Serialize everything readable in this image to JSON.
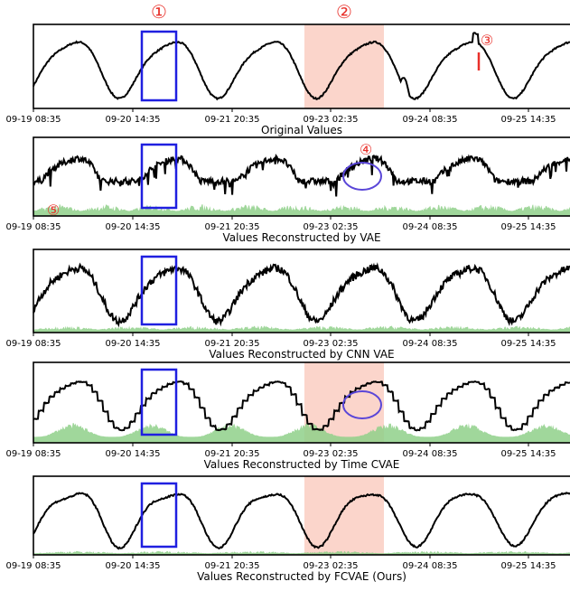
{
  "colors": {
    "signal": "#000000",
    "highlight_box": "#1f1fe0",
    "highlight_ellipse": "#5a46d8",
    "shaded_region": "#fbd5cb",
    "error_area": "#8fd08a",
    "marker": "#e8302a"
  },
  "markers": {
    "m1": "①",
    "m2": "②",
    "m3": "③",
    "m4": "④",
    "m5": "⑤"
  },
  "chart_data": [
    {
      "type": "line",
      "title": "Original Values",
      "x_ticks": [
        "09-19 08:35",
        "09-20 14:35",
        "09-21 20:35",
        "09-23 02:35",
        "09-24 08:35",
        "09-25 14:35"
      ],
      "series": [
        {
          "values": []
        }
      ]
    },
    {
      "type": "area",
      "title": "Values Reconstructed by VAE",
      "x_ticks": [
        "09-19 08:35",
        "09-20 14:35",
        "09-21 20:35",
        "09-23 02:35",
        "09-24 08:35",
        "09-25 14:35"
      ],
      "series": [
        {
          "values": []
        }
      ]
    },
    {
      "type": "area",
      "title": "Values Reconstructed by CNN VAE",
      "x_ticks": [
        "09-19 08:35",
        "09-20 14:35",
        "09-21 20:35",
        "09-23 02:35",
        "09-24 08:35",
        "09-25 14:35"
      ],
      "series": [
        {
          "values": []
        }
      ]
    },
    {
      "type": "area",
      "title": "Values Reconstructed by Time CVAE",
      "x_ticks": [
        "09-19 08:35",
        "09-20 14:35",
        "09-21 20:35",
        "09-23 02:35",
        "09-24 08:35",
        "09-25 14:35"
      ],
      "series": [
        {
          "values": []
        }
      ]
    },
    {
      "type": "area",
      "title": "Values Reconstructed by FCVAE (Ours)",
      "x_ticks": [
        "09-19 08:35",
        "09-20 14:35",
        "09-21 20:35",
        "09-23 02:35",
        "09-24 08:35",
        "09-25 14:35"
      ],
      "series": [
        {
          "values": []
        }
      ]
    }
  ]
}
